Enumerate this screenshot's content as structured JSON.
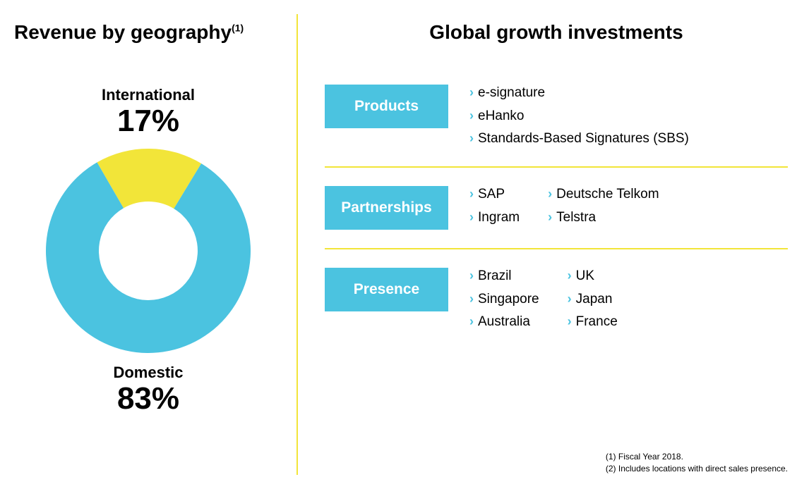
{
  "left": {
    "title": "Revenue by geography",
    "title_sup": "(1)",
    "donut": {
      "type": "donut",
      "slices": [
        {
          "name": "International",
          "value": 17,
          "display": "17%",
          "color": "#f2e539"
        },
        {
          "name": "Domestic",
          "value": 83,
          "display": "83%",
          "color": "#4bc3e0"
        }
      ],
      "inner_radius": 70,
      "outer_radius": 145,
      "size": 300,
      "start_angle_deg": -30,
      "background": "#ffffff"
    }
  },
  "right": {
    "title": "Global growth investments",
    "categories": [
      {
        "label": "Products",
        "box_color": "#4bc3e0",
        "columns": [
          [
            "e-signature",
            "eHanko",
            "Standards-Based Signatures (SBS)"
          ]
        ]
      },
      {
        "label": "Partnerships",
        "box_color": "#4bc3e0",
        "columns": [
          [
            "SAP",
            "Ingram"
          ],
          [
            "Deutsche Telkom",
            "Telstra"
          ]
        ]
      },
      {
        "label": "Presence",
        "box_color": "#4bc3e0",
        "columns": [
          [
            "Brazil",
            "Singapore",
            "Australia"
          ],
          [
            "UK",
            "Japan",
            "France"
          ]
        ]
      }
    ],
    "divider_color": "#f2e539",
    "chevron_color": "#4bc3e0"
  },
  "footnotes": [
    "(1) Fiscal Year 2018.",
    "(2) Includes locations with direct sales presence."
  ],
  "colors": {
    "cyan": "#4bc3e0",
    "yellow": "#f2e539",
    "text": "#000000",
    "background": "#ffffff"
  },
  "typography": {
    "title_fontsize": 28,
    "label_name_fontsize": 22,
    "label_value_fontsize": 44,
    "category_box_fontsize": 21,
    "item_fontsize": 19,
    "footnote_fontsize": 12
  }
}
